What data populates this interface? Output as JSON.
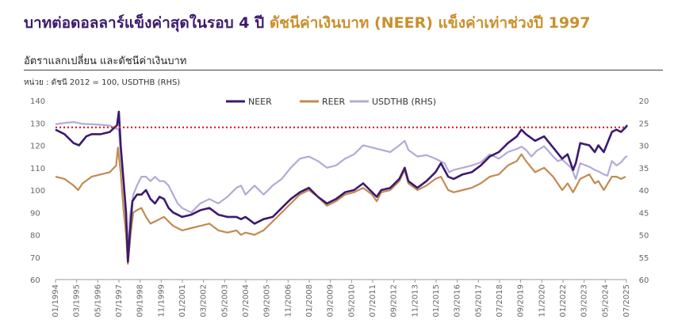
{
  "header": {
    "title_part1": "บาทต่อดอลลาร์แข็งค่าสุดในรอบ 4 ปี",
    "title_part2": "ดัชนีค่าเงินบาท (NEER) แข็งค่าเท่าช่วงปี 1997",
    "subtitle": "อัตราแลกเปลี่ยน และดัชนีค่าเงินบาท",
    "unit_note": "หน่วย : ดัชนี 2012 = 100, USDTHB (RHS)"
  },
  "colors": {
    "title_primary": "#3b1a6e",
    "title_accent": "#c9902c",
    "neer": "#3b1a6e",
    "reer": "#c28a52",
    "usdthb": "#b3aad6",
    "reference_line": "#e0262b"
  },
  "chart_data": {
    "type": "line",
    "ylim": [
      60,
      140
    ],
    "y2lim": [
      20,
      60
    ],
    "y2_inverted": true,
    "yticks": [
      "140",
      "130",
      "120",
      "110",
      "100",
      "90",
      "80",
      "70",
      "60"
    ],
    "y2ticks": [
      "20",
      "25",
      "30",
      "35",
      "40",
      "45",
      "50",
      "55",
      "60"
    ],
    "xticks": [
      "01/1994",
      "03/1995",
      "05/1996",
      "07/1997",
      "09/1998",
      "11/1999",
      "01/2001",
      "03/2002",
      "05/2003",
      "07/2004",
      "09/2005",
      "11/2006",
      "01/2008",
      "03/2009",
      "05/2010",
      "07/2011",
      "09/2012",
      "11/2013",
      "01/2015",
      "03/2016",
      "05/2017",
      "07/2018",
      "09/2019",
      "11/2020",
      "01/2022",
      "03/2023",
      "05/2024",
      "07/2025"
    ],
    "grid": false,
    "legend_position": "top-center",
    "reference_line": {
      "axis": "left",
      "value": 128,
      "style": "dotted"
    },
    "series": [
      {
        "name": "NEER",
        "key": "neer",
        "axis": "left",
        "points": [
          [
            1994.0,
            127
          ],
          [
            1994.5,
            125
          ],
          [
            1995.0,
            121
          ],
          [
            1995.3,
            120
          ],
          [
            1995.7,
            124
          ],
          [
            1996.0,
            125
          ],
          [
            1996.5,
            125
          ],
          [
            1997.0,
            126
          ],
          [
            1997.4,
            129
          ],
          [
            1997.5,
            135
          ],
          [
            1997.6,
            120
          ],
          [
            1997.75,
            105
          ],
          [
            1997.9,
            90
          ],
          [
            1998.0,
            68
          ],
          [
            1998.1,
            80
          ],
          [
            1998.25,
            95
          ],
          [
            1998.5,
            98
          ],
          [
            1998.75,
            98
          ],
          [
            1999.0,
            100
          ],
          [
            1999.25,
            96
          ],
          [
            1999.5,
            94
          ],
          [
            1999.75,
            97
          ],
          [
            2000.0,
            96
          ],
          [
            2000.25,
            92
          ],
          [
            2000.5,
            90
          ],
          [
            2000.75,
            89
          ],
          [
            2001.0,
            88
          ],
          [
            2001.5,
            89
          ],
          [
            2002.0,
            91
          ],
          [
            2002.5,
            92
          ],
          [
            2003.0,
            89
          ],
          [
            2003.5,
            88
          ],
          [
            2004.0,
            88
          ],
          [
            2004.25,
            87
          ],
          [
            2004.5,
            88
          ],
          [
            2005.0,
            85
          ],
          [
            2005.5,
            87
          ],
          [
            2006.0,
            88
          ],
          [
            2006.5,
            92
          ],
          [
            2007.0,
            96
          ],
          [
            2007.5,
            99
          ],
          [
            2008.0,
            101
          ],
          [
            2008.5,
            97
          ],
          [
            2009.0,
            94
          ],
          [
            2009.5,
            96
          ],
          [
            2010.0,
            99
          ],
          [
            2010.5,
            100
          ],
          [
            2011.0,
            103
          ],
          [
            2011.5,
            99
          ],
          [
            2011.75,
            97
          ],
          [
            2012.0,
            100
          ],
          [
            2012.5,
            101
          ],
          [
            2013.0,
            105
          ],
          [
            2013.3,
            110
          ],
          [
            2013.5,
            104
          ],
          [
            2014.0,
            101
          ],
          [
            2014.5,
            104
          ],
          [
            2015.0,
            108
          ],
          [
            2015.3,
            112
          ],
          [
            2015.7,
            106
          ],
          [
            2016.0,
            105
          ],
          [
            2016.5,
            107
          ],
          [
            2017.0,
            108
          ],
          [
            2017.5,
            111
          ],
          [
            2018.0,
            115
          ],
          [
            2018.5,
            117
          ],
          [
            2019.0,
            121
          ],
          [
            2019.5,
            124
          ],
          [
            2019.75,
            127
          ],
          [
            2020.0,
            125
          ],
          [
            2020.5,
            122
          ],
          [
            2021.0,
            124
          ],
          [
            2021.5,
            119
          ],
          [
            2022.0,
            114
          ],
          [
            2022.3,
            116
          ],
          [
            2022.6,
            109
          ],
          [
            2022.75,
            112
          ],
          [
            2023.0,
            121
          ],
          [
            2023.5,
            120
          ],
          [
            2023.8,
            117
          ],
          [
            2024.0,
            120
          ],
          [
            2024.3,
            117
          ],
          [
            2024.6,
            123
          ],
          [
            2024.75,
            126
          ],
          [
            2025.0,
            127
          ],
          [
            2025.25,
            126
          ],
          [
            2025.5,
            128
          ],
          [
            2025.6,
            129
          ]
        ]
      },
      {
        "name": "REER",
        "key": "reer",
        "axis": "left",
        "points": [
          [
            1994.0,
            106
          ],
          [
            1994.5,
            105
          ],
          [
            1995.0,
            102
          ],
          [
            1995.25,
            100
          ],
          [
            1995.5,
            103
          ],
          [
            1996.0,
            106
          ],
          [
            1996.5,
            107
          ],
          [
            1997.0,
            108
          ],
          [
            1997.35,
            111
          ],
          [
            1997.45,
            119
          ],
          [
            1997.6,
            108
          ],
          [
            1997.75,
            92
          ],
          [
            1997.9,
            80
          ],
          [
            1998.0,
            67
          ],
          [
            1998.15,
            80
          ],
          [
            1998.3,
            90
          ],
          [
            1998.5,
            91
          ],
          [
            1998.75,
            92
          ],
          [
            1999.0,
            88
          ],
          [
            1999.25,
            85
          ],
          [
            1999.5,
            86
          ],
          [
            1999.75,
            87
          ],
          [
            2000.0,
            88
          ],
          [
            2000.25,
            86
          ],
          [
            2000.5,
            84
          ],
          [
            2000.75,
            83
          ],
          [
            2001.0,
            82
          ],
          [
            2001.5,
            83
          ],
          [
            2002.0,
            84
          ],
          [
            2002.5,
            85
          ],
          [
            2003.0,
            82
          ],
          [
            2003.5,
            81
          ],
          [
            2004.0,
            82
          ],
          [
            2004.25,
            80
          ],
          [
            2004.5,
            81
          ],
          [
            2005.0,
            80
          ],
          [
            2005.5,
            82
          ],
          [
            2006.0,
            86
          ],
          [
            2006.5,
            90
          ],
          [
            2007.0,
            94
          ],
          [
            2007.5,
            98
          ],
          [
            2008.0,
            100
          ],
          [
            2008.5,
            97
          ],
          [
            2009.0,
            93
          ],
          [
            2009.5,
            95
          ],
          [
            2010.0,
            98
          ],
          [
            2010.5,
            99
          ],
          [
            2011.0,
            101
          ],
          [
            2011.5,
            98
          ],
          [
            2011.75,
            95
          ],
          [
            2012.0,
            99
          ],
          [
            2012.5,
            100
          ],
          [
            2013.0,
            104
          ],
          [
            2013.3,
            109
          ],
          [
            2013.5,
            103
          ],
          [
            2014.0,
            100
          ],
          [
            2014.5,
            102
          ],
          [
            2015.0,
            105
          ],
          [
            2015.3,
            106
          ],
          [
            2015.7,
            100
          ],
          [
            2016.0,
            99
          ],
          [
            2016.5,
            100
          ],
          [
            2017.0,
            101
          ],
          [
            2017.5,
            103
          ],
          [
            2018.0,
            106
          ],
          [
            2018.5,
            107
          ],
          [
            2019.0,
            111
          ],
          [
            2019.5,
            113
          ],
          [
            2019.75,
            116
          ],
          [
            2020.0,
            113
          ],
          [
            2020.5,
            108
          ],
          [
            2021.0,
            110
          ],
          [
            2021.5,
            106
          ],
          [
            2022.0,
            100
          ],
          [
            2022.3,
            103
          ],
          [
            2022.6,
            99
          ],
          [
            2023.0,
            105
          ],
          [
            2023.5,
            107
          ],
          [
            2023.8,
            103
          ],
          [
            2024.0,
            104
          ],
          [
            2024.3,
            100
          ],
          [
            2024.6,
            104
          ],
          [
            2024.75,
            106
          ],
          [
            2025.0,
            106
          ],
          [
            2025.25,
            105
          ],
          [
            2025.5,
            106
          ]
        ]
      },
      {
        "name": "USDTHB (RHS)",
        "key": "usdthb",
        "axis": "right",
        "points": [
          [
            1994.0,
            25.3
          ],
          [
            1994.5,
            25.0
          ],
          [
            1995.0,
            24.8
          ],
          [
            1995.5,
            25.2
          ],
          [
            1996.0,
            25.3
          ],
          [
            1996.5,
            25.4
          ],
          [
            1997.0,
            25.6
          ],
          [
            1997.5,
            26.5
          ],
          [
            1997.6,
            32
          ],
          [
            1997.75,
            38
          ],
          [
            1997.9,
            47
          ],
          [
            1998.0,
            54
          ],
          [
            1998.1,
            46
          ],
          [
            1998.3,
            41
          ],
          [
            1998.5,
            39
          ],
          [
            1998.75,
            37
          ],
          [
            1999.0,
            37
          ],
          [
            1999.25,
            38
          ],
          [
            1999.5,
            37
          ],
          [
            1999.75,
            38
          ],
          [
            2000.0,
            38
          ],
          [
            2000.25,
            39
          ],
          [
            2000.5,
            41
          ],
          [
            2000.75,
            43
          ],
          [
            2001.0,
            44
          ],
          [
            2001.5,
            45
          ],
          [
            2002.0,
            43
          ],
          [
            2002.5,
            42
          ],
          [
            2003.0,
            43
          ],
          [
            2003.5,
            41.5
          ],
          [
            2004.0,
            39.5
          ],
          [
            2004.25,
            39
          ],
          [
            2004.5,
            41
          ],
          [
            2005.0,
            39
          ],
          [
            2005.5,
            41
          ],
          [
            2006.0,
            39
          ],
          [
            2006.5,
            37.5
          ],
          [
            2007.0,
            35
          ],
          [
            2007.5,
            33
          ],
          [
            2008.0,
            32.5
          ],
          [
            2008.5,
            33.5
          ],
          [
            2009.0,
            35
          ],
          [
            2009.5,
            34.5
          ],
          [
            2010.0,
            33
          ],
          [
            2010.5,
            32
          ],
          [
            2011.0,
            30
          ],
          [
            2011.5,
            30.5
          ],
          [
            2012.0,
            31
          ],
          [
            2012.5,
            31.5
          ],
          [
            2013.0,
            30
          ],
          [
            2013.3,
            29
          ],
          [
            2013.5,
            31
          ],
          [
            2014.0,
            32.5
          ],
          [
            2014.5,
            32.2
          ],
          [
            2015.0,
            33
          ],
          [
            2015.5,
            34
          ],
          [
            2015.75,
            36
          ],
          [
            2016.0,
            35.5
          ],
          [
            2016.5,
            35
          ],
          [
            2017.0,
            34.5
          ],
          [
            2017.5,
            33.8
          ],
          [
            2018.0,
            32
          ],
          [
            2018.5,
            33
          ],
          [
            2019.0,
            31.5
          ],
          [
            2019.5,
            30.8
          ],
          [
            2019.75,
            30.3
          ],
          [
            2020.0,
            31
          ],
          [
            2020.3,
            32.5
          ],
          [
            2020.6,
            31.2
          ],
          [
            2021.0,
            30.2
          ],
          [
            2021.5,
            32.5
          ],
          [
            2021.75,
            33.5
          ],
          [
            2022.0,
            33.2
          ],
          [
            2022.5,
            35
          ],
          [
            2022.75,
            37.5
          ],
          [
            2023.0,
            34
          ],
          [
            2023.5,
            34.8
          ],
          [
            2023.8,
            35.5
          ],
          [
            2024.0,
            35.8
          ],
          [
            2024.3,
            36.5
          ],
          [
            2024.5,
            36.8
          ],
          [
            2024.75,
            33.5
          ],
          [
            2025.0,
            34.5
          ],
          [
            2025.25,
            33.8
          ],
          [
            2025.5,
            32.6
          ],
          [
            2025.6,
            32.4
          ]
        ]
      }
    ]
  }
}
